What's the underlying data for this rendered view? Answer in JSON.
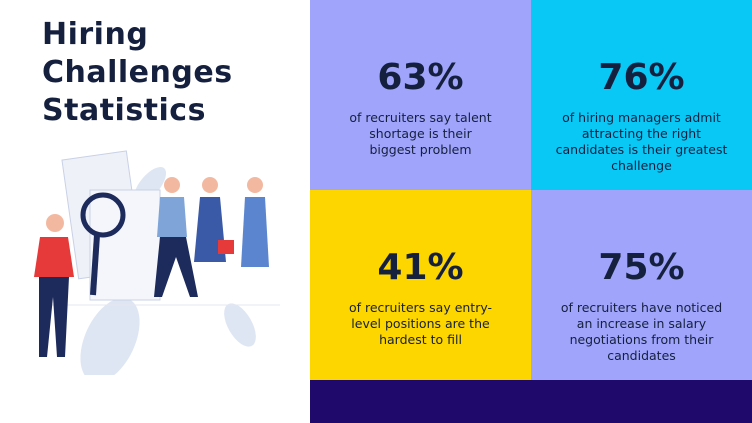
{
  "header": {
    "title_lines": [
      "Hiring",
      "Challenges",
      "Statistics"
    ]
  },
  "stats": [
    {
      "figure": "63%",
      "text": "of recruiters say talent shortage is their biggest problem"
    },
    {
      "figure": "76%",
      "text": "of hiring managers admit attracting the right candidates is their greatest challenge"
    },
    {
      "figure": "41%",
      "text": "of recruiters say entry-level positions are the hardest to fill"
    },
    {
      "figure": "75%",
      "text": "of recruiters have noticed an increase in salary negotiations from their candidates"
    }
  ]
}
